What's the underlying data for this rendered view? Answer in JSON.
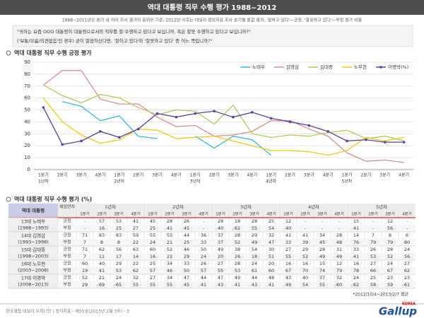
{
  "header": {
    "title": "역대 대통령 직무 수행 평가 1988~2012",
    "subtitle": "1988~2011년은 분기 내 여러 조사 결과의 중위수 기준, 2012년 이후는 데일리 정치지표 조사 분기별 통합 결과, '잘하고 있다'—긍정, '잘못하고 있다'—부정 평가 비율",
    "question": [
      "\"귀하는 요즘 OOO 대통령이 대통령으로서의 직무를 잘 수행하고 있다고 보십니까, 혹은 잘못 수행하고 있다고 보십니까?\"",
      "('보통/모름/의견없음'인 경우) 굳이 말씀하신다면, '잘하고 있다'와 '잘못하고 있다' 중 어느 쪽입니까?\""
    ]
  },
  "chart_data": {
    "type": "line",
    "title": "역대 대통령 직무 수행 긍정 평가",
    "categories": [
      "1분기",
      "2분기",
      "3분기",
      "4분기",
      "1분기",
      "2분기",
      "3분기",
      "4분기",
      "1분기",
      "2분기",
      "3분기",
      "4분기",
      "1분기",
      "2분기",
      "3분기",
      "4분기",
      "1분기",
      "2분기",
      "3분기",
      "4분기"
    ],
    "category_groups": [
      "1년차",
      "2년차",
      "3년차",
      "4년차",
      "5년차"
    ],
    "series": [
      {
        "name": "노태우",
        "color": "#3cb8d8",
        "values": [
          null,
          57,
          53,
          41,
          45,
          28,
          26,
          null,
          28,
          18,
          28,
          25,
          12,
          null,
          null,
          null,
          15,
          null,
          12,
          null
        ]
      },
      {
        "name": "김영삼",
        "color": "#d98f8f",
        "values": [
          71,
          83,
          83,
          59,
          55,
          55,
          44,
          36,
          37,
          28,
          29,
          32,
          41,
          41,
          34,
          28,
          14,
          7,
          8,
          6
        ]
      },
      {
        "name": "김대중",
        "color": "#b9c65c",
        "values": [
          71,
          62,
          56,
          63,
          60,
          52,
          46,
          50,
          49,
          38,
          54,
          30,
          27,
          29,
          28,
          31,
          33,
          26,
          28,
          24
        ]
      },
      {
        "name": "노무현",
        "color": "#f2c81e",
        "values": [
          60,
          40,
          29,
          22,
          25,
          34,
          33,
          26,
          27,
          28,
          24,
          20,
          16,
          16,
          15,
          12,
          16,
          27,
          24,
          27
        ]
      },
      {
        "name": "이명박(%)",
        "color": "#5b3f9c",
        "marker": "circle",
        "values": [
          52,
          21,
          24,
          32,
          27,
          34,
          47,
          44,
          47,
          49,
          44,
          48,
          43,
          40,
          37,
          32,
          24,
          25,
          23,
          23
        ]
      }
    ],
    "ylim": [
      0,
      90
    ],
    "yticks": [
      0,
      10,
      20,
      30,
      40,
      50,
      60,
      70,
      80,
      90
    ],
    "grid": true,
    "legend": "top-right"
  },
  "table": {
    "title": "역대 대통령 직무 수행 평가 (%)",
    "corner": "역대 대통령",
    "tenure": "재임연차",
    "years": [
      "1년차",
      "2년차",
      "3년차",
      "4년차",
      "5년차"
    ],
    "quarters": [
      "1분기",
      "2분기",
      "3분기",
      "4분기",
      "1분기",
      "2분기",
      "3분기",
      "4분기",
      "1분기",
      "2분기",
      "3분기",
      "4분기",
      "1분기",
      "2분기",
      "3분기",
      "4분기",
      "1분기",
      "2분기",
      "3분기",
      "4분기"
    ],
    "rows": [
      {
        "name": "13대 노태우",
        "term": "(1988~1993)",
        "positive_label": "긍정",
        "positive": [
          "-",
          57,
          53,
          41,
          45,
          28,
          26,
          "-",
          28,
          18,
          28,
          25,
          12,
          "-",
          "-",
          "-",
          15,
          "-",
          12,
          "-"
        ],
        "negative_label": "부정",
        "negative": [
          "-",
          16,
          25,
          27,
          25,
          41,
          45,
          "-",
          40,
          62,
          55,
          54,
          40,
          "-",
          "-",
          "-",
          41,
          "-",
          56,
          "-"
        ]
      },
      {
        "name": "14대 김영삼",
        "term": "(1993~1998)",
        "positive_label": "긍정",
        "positive": [
          71,
          83,
          83,
          59,
          55,
          55,
          44,
          36,
          37,
          28,
          29,
          32,
          41,
          41,
          34,
          28,
          14,
          7,
          8,
          6
        ],
        "negative_label": "부정",
        "negative": [
          7,
          8,
          8,
          22,
          24,
          21,
          25,
          33,
          37,
          52,
          49,
          47,
          33,
          39,
          45,
          48,
          76,
          79,
          79,
          80
        ]
      },
      {
        "name": "15대 김대중",
        "term": "(1998~2003)",
        "positive_label": "긍정",
        "positive": [
          71,
          62,
          56,
          63,
          60,
          52,
          46,
          50,
          49,
          38,
          54,
          30,
          27,
          29,
          28,
          31,
          33,
          26,
          28,
          24
        ],
        "negative_label": "부정",
        "negative": [
          7,
          11,
          17,
          14,
          16,
          22,
          29,
          24,
          20,
          26,
          18,
          51,
          55,
          52,
          49,
          49,
          41,
          53,
          52,
          56
        ]
      },
      {
        "name": "16대 노무현",
        "term": "(2003~2008)",
        "positive_label": "긍정",
        "positive": [
          60,
          40,
          29,
          22,
          25,
          34,
          33,
          26,
          27,
          28,
          24,
          20,
          16,
          16,
          15,
          12,
          16,
          27,
          24,
          27
        ],
        "negative_label": "부정",
        "negative": [
          19,
          41,
          53,
          62,
          57,
          46,
          50,
          57,
          55,
          53,
          61,
          60,
          67,
          70,
          74,
          79,
          78,
          66,
          67,
          62
        ]
      },
      {
        "name": "17대 이명박",
        "term": "(2008~2013)",
        "positive_label": "긍정",
        "positive": [
          52,
          21,
          24,
          32,
          27,
          34,
          47,
          44,
          47,
          49,
          44,
          48,
          43,
          40,
          37,
          32,
          24,
          25,
          23,
          23
        ],
        "negative_label": "부정",
        "negative": [
          29,
          69,
          65,
          55,
          55,
          55,
          45,
          41,
          43,
          41,
          43,
          41,
          49,
          54,
          55,
          60,
          62,
          58,
          59,
          61
        ]
      }
    ]
  },
  "footnote": "*2012/10/4~2013/2/7 평균",
  "footer": "한국갤럽 데일리 오피니언 | 정치지표 - 제55호(2013년 2월 3주) - 3",
  "logo": {
    "sub": "KOREA",
    "main": "Gallup"
  }
}
